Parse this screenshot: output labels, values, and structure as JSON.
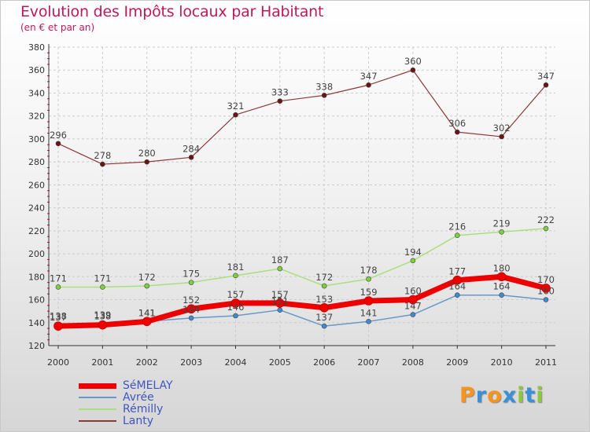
{
  "title": "Evolution des Impôts locaux par Habitant",
  "subtitle": "(en € et par an)",
  "logo": {
    "letters": [
      "P",
      "r",
      "o",
      "x",
      "i",
      "t",
      "i"
    ],
    "colors": [
      "#f7941d",
      "#3a8fd8",
      "#f7941d",
      "#3a8fd8",
      "#8dc63f",
      "#3a8fd8",
      "#8dc63f"
    ]
  },
  "colors": {
    "axis": "#333333",
    "grid": "#cccccc",
    "tick_minor": "#e0003c"
  },
  "chart_data": {
    "type": "line",
    "x": [
      "2000",
      "2001",
      "2002",
      "2003",
      "2004",
      "2005",
      "2006",
      "2007",
      "2008",
      "2009",
      "2010",
      "2011"
    ],
    "yticks": [
      "120",
      "140",
      "160",
      "180",
      "200",
      "220",
      "240",
      "260",
      "280",
      "300",
      "320",
      "340",
      "360",
      "380"
    ],
    "ylim": [
      120,
      380
    ],
    "grid": true,
    "legend_position": "bottom-left",
    "series": [
      {
        "name": "SéMELAY",
        "values": [
          137,
          138,
          141,
          152,
          157,
          157,
          153,
          159,
          160,
          177,
          180,
          170
        ],
        "labels": [
          "137",
          "138",
          "141",
          "152",
          "157",
          "157",
          "153",
          "159",
          "160",
          "177",
          "180",
          "170"
        ],
        "color": "#ee0000",
        "marker": "#ee0000",
        "width": 7
      },
      {
        "name": "Avrée",
        "values": [
          138,
          139,
          141,
          144,
          146,
          151,
          137,
          141,
          147,
          164,
          164,
          160
        ],
        "labels": [
          "138",
          "139",
          "141",
          "144",
          "146",
          "151",
          "137",
          "141",
          "147",
          "164",
          "164",
          "160"
        ],
        "color": "#6699c8",
        "marker": "#3f8ad0",
        "width": 1.5
      },
      {
        "name": "Rémilly",
        "values": [
          171,
          171,
          172,
          175,
          181,
          187,
          172,
          178,
          194,
          216,
          219,
          222
        ],
        "labels": [
          "171",
          "171",
          "172",
          "175",
          "181",
          "187",
          "172",
          "178",
          "194",
          "216",
          "219",
          "222"
        ],
        "color": "#a9e07a",
        "marker": "#7cd13e",
        "width": 1.5
      },
      {
        "name": "Lanty",
        "values": [
          296,
          278,
          280,
          284,
          321,
          333,
          338,
          347,
          360,
          306,
          302,
          347
        ],
        "labels": [
          "296",
          "278",
          "280",
          "284",
          "321",
          "333",
          "338",
          "347",
          "360",
          "306",
          "302",
          "347"
        ],
        "color": "#8b3a3a",
        "marker": "#6b1414",
        "width": 1.2
      }
    ]
  }
}
